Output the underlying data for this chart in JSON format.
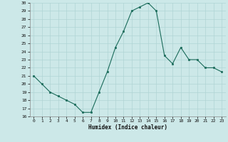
{
  "x": [
    0,
    1,
    2,
    3,
    4,
    5,
    6,
    7,
    8,
    9,
    10,
    11,
    12,
    13,
    14,
    15,
    16,
    17,
    18,
    19,
    20,
    21,
    22,
    23
  ],
  "y": [
    21,
    20,
    19,
    18.5,
    18,
    17.5,
    16.5,
    16.5,
    19,
    21.5,
    24.5,
    26.5,
    29,
    29.5,
    30,
    29,
    23.5,
    22.5,
    24.5,
    23,
    23,
    22,
    22,
    21.5
  ],
  "xlim": [
    -0.5,
    23.5
  ],
  "ylim": [
    16,
    30
  ],
  "yticks": [
    16,
    17,
    18,
    19,
    20,
    21,
    22,
    23,
    24,
    25,
    26,
    27,
    28,
    29,
    30
  ],
  "xticks": [
    0,
    1,
    2,
    3,
    4,
    5,
    6,
    7,
    8,
    9,
    10,
    11,
    12,
    13,
    14,
    15,
    16,
    17,
    18,
    19,
    20,
    21,
    22,
    23
  ],
  "xlabel": "Humidex (Indice chaleur)",
  "line_color": "#1a6b5a",
  "marker_color": "#1a6b5a",
  "bg_color": "#cce8e8",
  "grid_color": "#b0d4d4",
  "spine_color": "#888888"
}
